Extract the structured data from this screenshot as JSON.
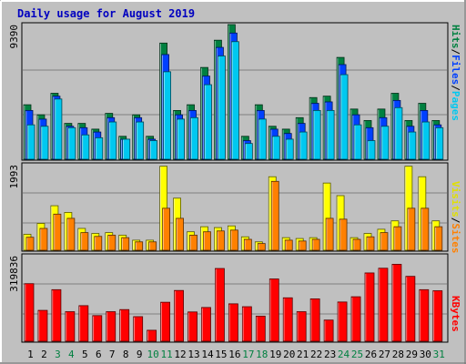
{
  "chart_data": [
    {
      "type": "bar",
      "title": "Daily usage for August 2019",
      "ylabel_parts": [
        "Pages",
        "/",
        "Files",
        "/",
        "Hits"
      ],
      "ymax_label": "9390",
      "ylim": [
        0,
        9390
      ],
      "categories": [
        "1",
        "2",
        "3",
        "4",
        "5",
        "6",
        "7",
        "8",
        "9",
        "10",
        "11",
        "12",
        "13",
        "14",
        "15",
        "16",
        "17",
        "18",
        "19",
        "20",
        "21",
        "22",
        "23",
        "24",
        "25",
        "26",
        "27",
        "28",
        "29",
        "30",
        "31"
      ],
      "weekend_days": [
        "3",
        "4",
        "10",
        "11",
        "17",
        "18",
        "24",
        "25",
        "31"
      ],
      "series": [
        {
          "name": "Hits",
          "values": [
            3800,
            3100,
            4600,
            2500,
            2500,
            2100,
            3200,
            1600,
            3100,
            1600,
            8100,
            3400,
            3800,
            6400,
            8300,
            9390,
            1600,
            3800,
            2300,
            2100,
            2900,
            4300,
            4400,
            7100,
            3500,
            2700,
            3500,
            4600,
            2700,
            3900,
            2700
          ]
        },
        {
          "name": "Files",
          "values": [
            3400,
            2800,
            4400,
            2300,
            2200,
            1900,
            2900,
            1400,
            2900,
            1400,
            7300,
            3100,
            3400,
            5800,
            7800,
            8800,
            1300,
            3400,
            2100,
            1800,
            2500,
            3900,
            4000,
            6600,
            3100,
            2200,
            2900,
            4100,
            2300,
            3400,
            2400
          ]
        },
        {
          "name": "Pages",
          "values": [
            2400,
            2300,
            4200,
            2200,
            1700,
            1500,
            2600,
            1400,
            2600,
            1300,
            6100,
            2800,
            2900,
            5200,
            7200,
            8200,
            1100,
            2800,
            1600,
            1400,
            1900,
            3400,
            3400,
            5900,
            2400,
            1300,
            2300,
            3600,
            1900,
            2600,
            2200
          ]
        }
      ],
      "colors": {
        "Hits": "#008040",
        "Files": "#0040ff",
        "Pages": "#00c8f0"
      }
    },
    {
      "type": "bar",
      "ylabel_parts": [
        "Sites",
        "/",
        "Visits"
      ],
      "ymax_label": "1993",
      "ylim": [
        0,
        1993
      ],
      "series": [
        {
          "name": "Visits",
          "values": [
            380,
            640,
            1060,
            900,
            520,
            400,
            420,
            360,
            240,
            240,
            2000,
            1240,
            440,
            560,
            540,
            580,
            320,
            200,
            1750,
            300,
            280,
            300,
            1600,
            1300,
            300,
            400,
            500,
            700,
            2000,
            1750,
            700
          ]
        },
        {
          "name": "Sites",
          "values": [
            310,
            520,
            860,
            760,
            420,
            330,
            360,
            300,
            200,
            200,
            1000,
            760,
            360,
            440,
            460,
            480,
            260,
            160,
            1640,
            240,
            220,
            260,
            760,
            740,
            260,
            320,
            420,
            560,
            1000,
            1000,
            560
          ]
        }
      ],
      "colors": {
        "Visits": "#ffff00",
        "Sites": "#ff8000"
      }
    },
    {
      "type": "bar",
      "ylabel_parts": [
        "KBytes"
      ],
      "ymax_label": "319836",
      "ylim": [
        0,
        319836
      ],
      "series": [
        {
          "name": "KBytes",
          "values": [
            220000,
            118000,
            197000,
            113000,
            136000,
            98000,
            113000,
            121000,
            94000,
            42000,
            149000,
            194000,
            112000,
            129000,
            278000,
            143000,
            132000,
            96000,
            238000,
            166000,
            113000,
            162000,
            81000,
            150000,
            170000,
            261000,
            279000,
            294000,
            248000,
            197000,
            193000
          ]
        }
      ],
      "colors": {
        "KBytes": "#ff0000"
      }
    }
  ]
}
